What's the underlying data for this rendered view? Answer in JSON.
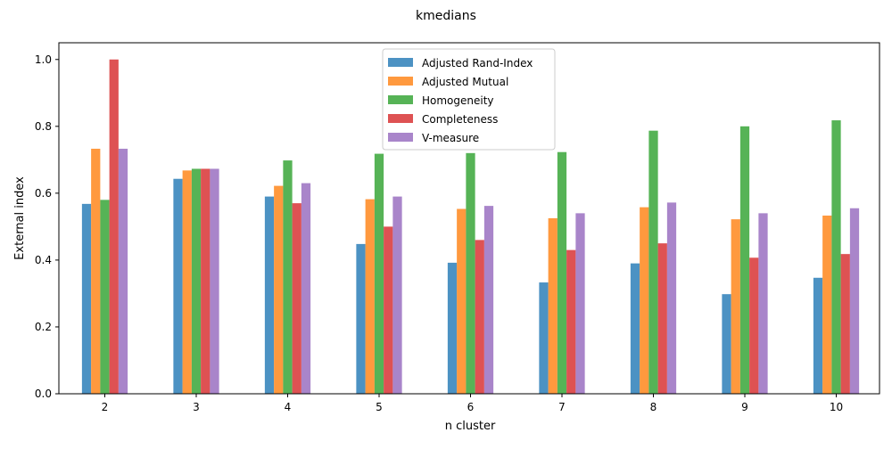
{
  "chart_data": {
    "type": "bar",
    "title": "kmedians",
    "xlabel": "n cluster",
    "ylabel": "External index",
    "categories": [
      "2",
      "3",
      "4",
      "5",
      "6",
      "7",
      "8",
      "9",
      "10"
    ],
    "ylim": [
      0,
      1.05
    ],
    "yticks": [
      "0.0",
      "0.2",
      "0.4",
      "0.6",
      "0.8",
      "1.0"
    ],
    "grid": false,
    "legend_position": "top-center",
    "series": [
      {
        "name": "Adjusted Rand-Index",
        "color": "#1f77b4",
        "values": [
          0.568,
          0.643,
          0.59,
          0.448,
          0.392,
          0.333,
          0.39,
          0.298,
          0.347
        ]
      },
      {
        "name": "Adjusted Mutual",
        "color": "#ff7f0e",
        "values": [
          0.733,
          0.668,
          0.622,
          0.582,
          0.553,
          0.525,
          0.558,
          0.522,
          0.533
        ]
      },
      {
        "name": "Homogeneity",
        "color": "#2ca02c",
        "values": [
          0.58,
          0.673,
          0.698,
          0.718,
          0.72,
          0.723,
          0.787,
          0.8,
          0.818
        ]
      },
      {
        "name": "Completeness",
        "color": "#d62728",
        "values": [
          1.0,
          0.673,
          0.57,
          0.5,
          0.46,
          0.43,
          0.45,
          0.407,
          0.418
        ]
      },
      {
        "name": "V-measure",
        "color": "#9467bd",
        "values": [
          0.733,
          0.673,
          0.63,
          0.59,
          0.562,
          0.54,
          0.572,
          0.54,
          0.555
        ]
      }
    ]
  }
}
